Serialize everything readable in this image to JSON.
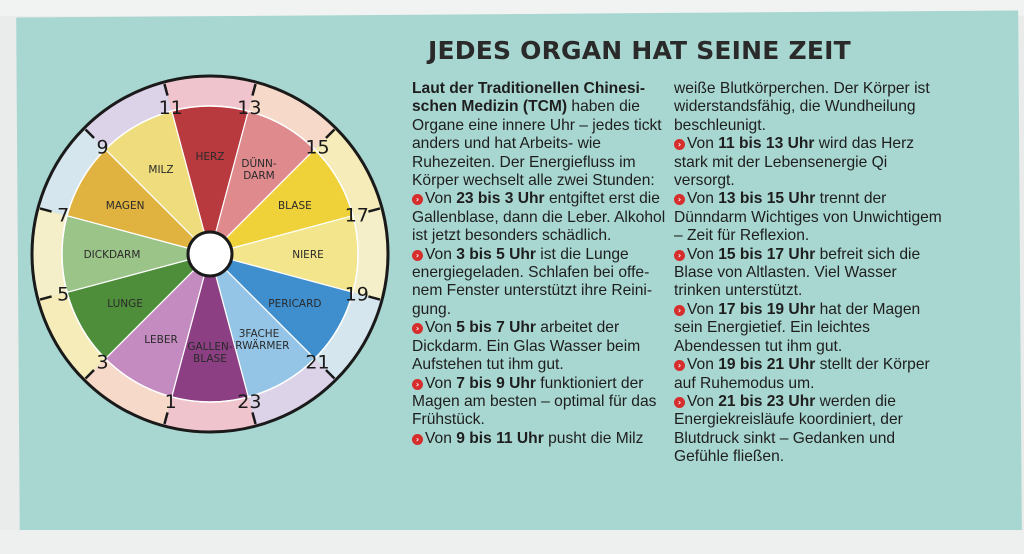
{
  "title": "JEDES ORGAN HAT SEINE ZEIT",
  "col1": {
    "intro_bold": "Laut der Traditionellen Chinesi­schen Medizin (TCM)",
    "intro_rest": " haben die Organe eine innere Uhr – jedes tickt anders und hat Arbeits- wie Ruhezeiten. Der Energiefluss im Körper wechselt alle zwei Stunden:",
    "items": [
      {
        "pre": "Von ",
        "range": "23 bis 3 Uhr",
        "text": " entgiftet erst die Gallenblase, dann die Leber. Alkohol ist jetzt besonders schädlich."
      },
      {
        "pre": "Von ",
        "range": "3 bis 5 Uhr",
        "text": "  ist die Lunge energiegeladen. Schlafen bei offe­nem Fenster unterstützt ihre Reini­gung."
      },
      {
        "pre": "Von ",
        "range": "5 bis 7 Uhr",
        "text": " arbeitet der Dickdarm. Ein Glas Wasser beim Aufstehen tut ihm gut."
      },
      {
        "pre": "Von ",
        "range": "7 bis 9 Uhr",
        "text": "  funktioniert der Magen am besten – optimal für das Frühstück."
      },
      {
        "pre": "Von ",
        "range": "9 bis 11 Uhr",
        "text": "  pusht die Milz"
      }
    ]
  },
  "col2": {
    "lead": "weiße Blutkörperchen. Der Kör­per ist widerstandsfähig, die Wundheilung beschleunigt.",
    "items": [
      {
        "pre": "Von ",
        "range": "11 bis 13 Uhr",
        "text": " wird das Herz stark mit der Lebensenergie Qi versorgt."
      },
      {
        "pre": "Von ",
        "range": "13 bis 15 Uhr",
        "text": " trennt der Dünndarm Wichtiges von Un­wichtigem – Zeit für Reflexion."
      },
      {
        "pre": "Von ",
        "range": "15 bis 17 Uhr",
        "text": " befreit sich die Blase von Altlasten. Viel Was­ser trinken unterstützt."
      },
      {
        "pre": "Von ",
        "range": "17 bis 19 Uhr",
        "text": " hat der Ma­gen sein Energietief. Ein leichtes Abendessen tut ihm gut."
      },
      {
        "pre": "Von ",
        "range": "19 bis 21 Uhr",
        "text": " stellt der Kör­per auf Ruhemodus um."
      },
      {
        "pre": "Von ",
        "range": "21 bis 23 Uhr",
        "text": " werden die Energiekreisläufe koordiniert, der Blutdruck sinkt – Gedanken und Gefühle fließen."
      }
    ]
  },
  "clock": {
    "hours": [
      "13",
      "15",
      "17",
      "19",
      "21",
      "23",
      "1",
      "3",
      "5",
      "7",
      "9",
      "11"
    ],
    "organs": [
      {
        "label": "HERZ",
        "color": "#b93a3e"
      },
      {
        "label": "DÜNN-\nDARM",
        "color": "#df8a8d"
      },
      {
        "label": "BLASE",
        "color": "#efd23a"
      },
      {
        "label": "NIERE",
        "color": "#f2e58b"
      },
      {
        "label": "PERICARD",
        "color": "#3f8fcf"
      },
      {
        "label": "3FACHE\nERWÄRMER",
        "color": "#94c5e6"
      },
      {
        "label": "GALLEN-\nBLASE",
        "color": "#8c3f83"
      },
      {
        "label": "LEBER",
        "color": "#c38bbf"
      },
      {
        "label": "LUNGE",
        "color": "#4e8e3a"
      },
      {
        "label": "DICKDARM",
        "color": "#9bc489"
      },
      {
        "label": "MAGEN",
        "color": "#e0b341"
      },
      {
        "label": "MILZ",
        "color": "#efdc7c"
      }
    ],
    "ring_colors": [
      "#f0c4cd",
      "#f6d9c9",
      "#f6ecb9",
      "#f4efc8",
      "#d6e6ee",
      "#dcd3e9"
    ],
    "bullet_color": "#d62d2d"
  }
}
